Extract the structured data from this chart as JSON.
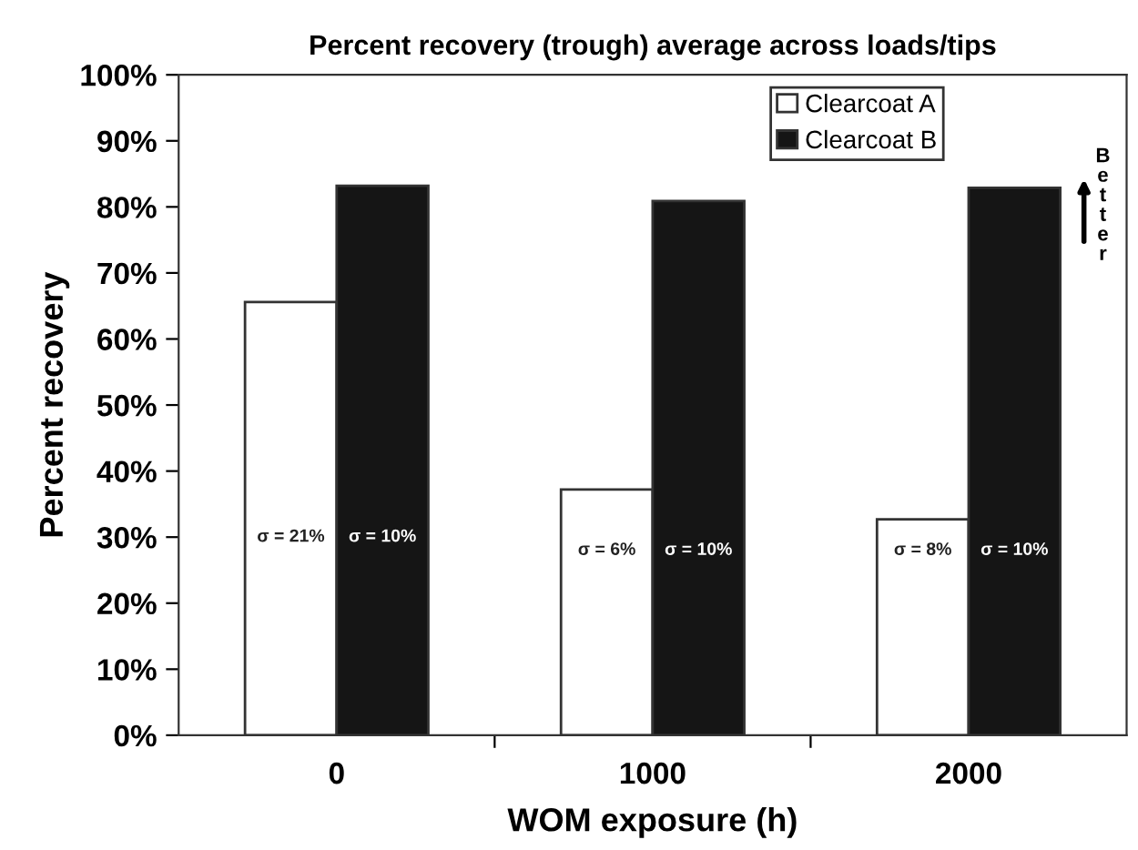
{
  "chart_data": {
    "type": "bar",
    "title": "Percent recovery (trough) average across loads/tips",
    "xlabel": "WOM exposure (h)",
    "ylabel": "Percent recovery",
    "categories": [
      "0",
      "1000",
      "2000"
    ],
    "series": [
      {
        "name": "Clearcoat A",
        "color": "#ffffff",
        "values": [
          65.6,
          37.2,
          32.7
        ]
      },
      {
        "name": "Clearcoat B",
        "color": "#151515",
        "values": [
          83.2,
          80.9,
          82.9
        ]
      }
    ],
    "ylim": [
      0,
      100
    ],
    "yticks": [
      {
        "value": 0,
        "label": "0%"
      },
      {
        "value": 10,
        "label": "10%"
      },
      {
        "value": 20,
        "label": "20%"
      },
      {
        "value": 30,
        "label": "30%"
      },
      {
        "value": 40,
        "label": "40%"
      },
      {
        "value": 50,
        "label": "50%"
      },
      {
        "value": 60,
        "label": "60%"
      },
      {
        "value": 70,
        "label": "70%"
      },
      {
        "value": 80,
        "label": "80%"
      },
      {
        "value": 90,
        "label": "90%"
      },
      {
        "value": 100,
        "label": "100%"
      }
    ],
    "annotations": [
      {
        "text": "σ = 21%",
        "x": "0",
        "y": 30
      },
      {
        "text": "σ = 10%",
        "x": "0",
        "y": 30
      },
      {
        "text": "σ = 6%",
        "x": "1000",
        "y": 28
      },
      {
        "text": "σ = 10%",
        "x": "1000",
        "y": 28
      },
      {
        "text": "σ = 8%",
        "x": "2000",
        "y": 28
      },
      {
        "text": "σ = 10%",
        "x": "2000",
        "y": 28
      },
      "Better"
    ],
    "legend": "top right",
    "grid": false
  }
}
